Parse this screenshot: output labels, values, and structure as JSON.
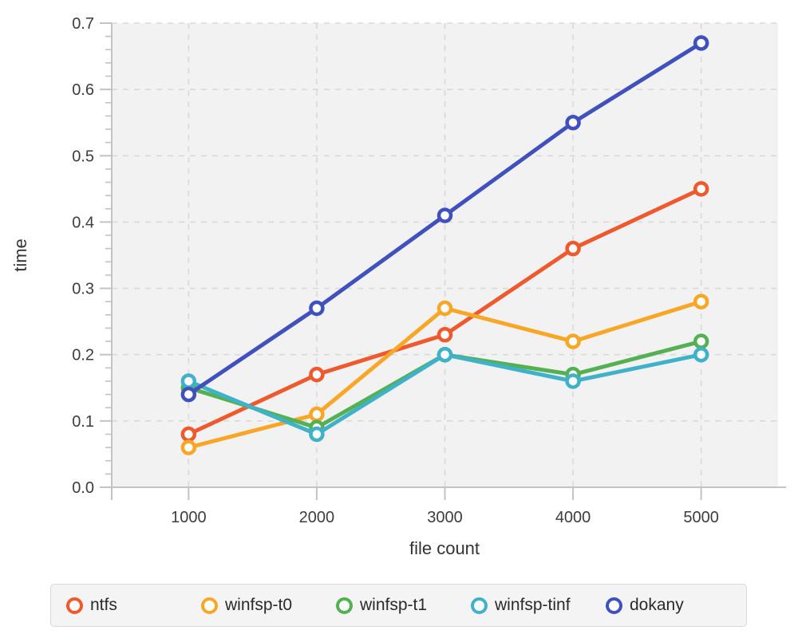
{
  "chart_data": {
    "type": "line",
    "title": "",
    "xlabel": "file count",
    "ylabel": "time",
    "x": [
      1000,
      2000,
      3000,
      4000,
      5000
    ],
    "x_tick_labels": [
      "1000",
      "2000",
      "3000",
      "4000",
      "5000"
    ],
    "y_tick_values": [
      0.0,
      0.1,
      0.2,
      0.3,
      0.4,
      0.5,
      0.6,
      0.7
    ],
    "y_tick_labels": [
      "0.0",
      "0.1",
      "0.2",
      "0.3",
      "0.4",
      "0.5",
      "0.6",
      "0.7"
    ],
    "y_minor_step": 0.02,
    "xlim": [
      400,
      5600
    ],
    "ylim": [
      0.0,
      0.7
    ],
    "grid": "dashed",
    "marker": "open-circle",
    "legend_position": "bottom",
    "series": [
      {
        "name": "ntfs",
        "color": "#ee5a2d",
        "values": [
          0.08,
          0.17,
          0.23,
          0.36,
          0.45
        ]
      },
      {
        "name": "winfsp-t0",
        "color": "#f8a625",
        "values": [
          0.06,
          0.11,
          0.27,
          0.22,
          0.28
        ]
      },
      {
        "name": "winfsp-t1",
        "color": "#55b054",
        "values": [
          0.15,
          0.09,
          0.2,
          0.17,
          0.22
        ]
      },
      {
        "name": "winfsp-tinf",
        "color": "#3fb1c9",
        "values": [
          0.16,
          0.08,
          0.2,
          0.16,
          0.2
        ]
      },
      {
        "name": "dokany",
        "color": "#4051be",
        "values": [
          0.14,
          0.27,
          0.41,
          0.55,
          0.67
        ]
      }
    ]
  },
  "style": {
    "plot_bg": "#f2f2f2",
    "grid_color": "#d9d9d9",
    "axis_color": "#c3c3c3",
    "tick_label_color": "#3d3d3d",
    "axis_label_color": "#333333",
    "legend_bg": "#f4f4f4",
    "legend_border": "#d9d9d9",
    "legend_text": "#2a2a2a"
  }
}
